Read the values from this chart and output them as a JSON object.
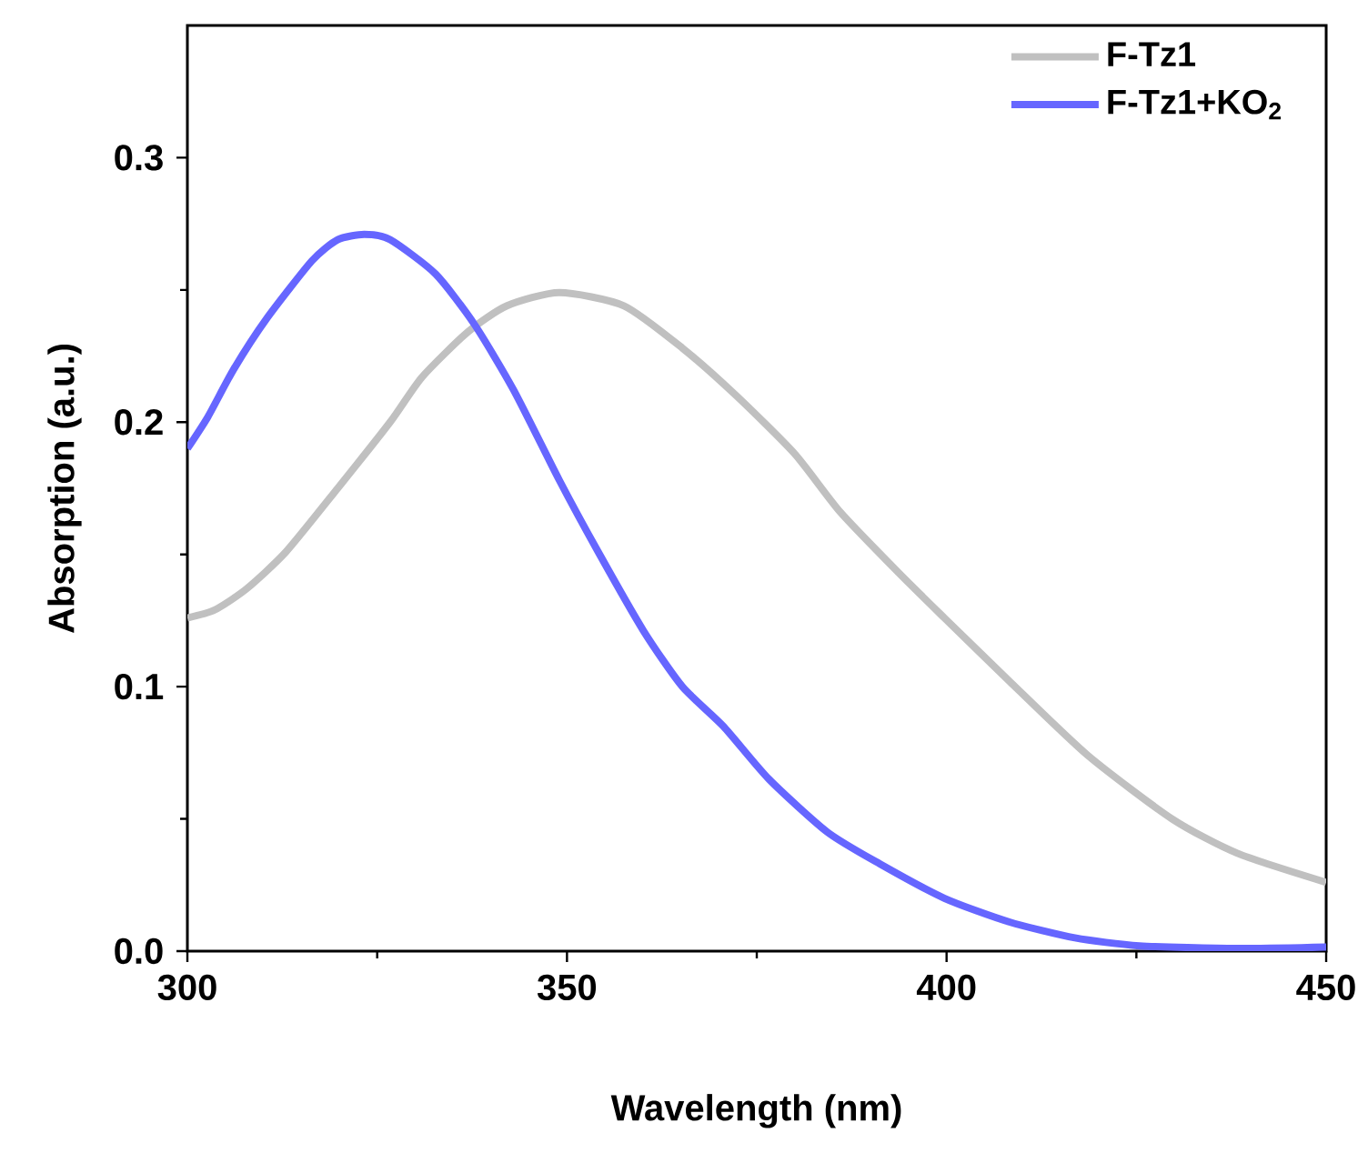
{
  "chart_data": {
    "type": "line",
    "xlabel": "Wavelength (nm)",
    "ylabel": "Absorption (a.u.)",
    "xlim": [
      300,
      450
    ],
    "xticks": [
      300,
      350,
      400,
      450
    ],
    "ylim": [
      0,
      0.35
    ],
    "yticks": [
      {
        "value": 0,
        "label": "0.0"
      },
      0.1,
      0.2,
      0.3
    ],
    "legend": "top right",
    "grid": false,
    "line_style": "solid",
    "marker": "none",
    "series": [
      {
        "name": "F-Tz1",
        "color": "#c0c0c0",
        "x": [
          300,
          303.6,
          307.8,
          313,
          319.8,
          326.7,
          330.9,
          336.9,
          342.1,
          349,
          357.5,
          365.2,
          372.3,
          380,
          386,
          393.7,
          399.7,
          408.3,
          418.6,
          429.7,
          438.3,
          450
        ],
        "values": [
          0.126,
          0.129,
          0.137,
          0.151,
          0.175,
          0.2,
          0.217,
          0.234,
          0.244,
          0.249,
          0.244,
          0.228,
          0.21,
          0.188,
          0.166,
          0.143,
          0.126,
          0.102,
          0.074,
          0.05,
          0.037,
          0.026
        ]
      },
      {
        "name": "F-Tz1+KO$_{2}$",
        "color": "#6666ff",
        "x": [
          300,
          302.7,
          306.1,
          310.4,
          316.4,
          319.8,
          323.3,
          326.7,
          332.7,
          337.8,
          343,
          349,
          354.1,
          360.1,
          365.2,
          370.6,
          376.6,
          384.3,
          391.2,
          399.7,
          408.3,
          416.9,
          425.4,
          438.3,
          450
        ],
        "values": [
          0.19,
          0.202,
          0.22,
          0.239,
          0.261,
          0.269,
          0.271,
          0.269,
          0.256,
          0.237,
          0.212,
          0.178,
          0.151,
          0.121,
          0.1,
          0.085,
          0.065,
          0.045,
          0.033,
          0.02,
          0.011,
          0.005,
          0.002,
          0.001,
          0.0015
        ]
      }
    ]
  }
}
